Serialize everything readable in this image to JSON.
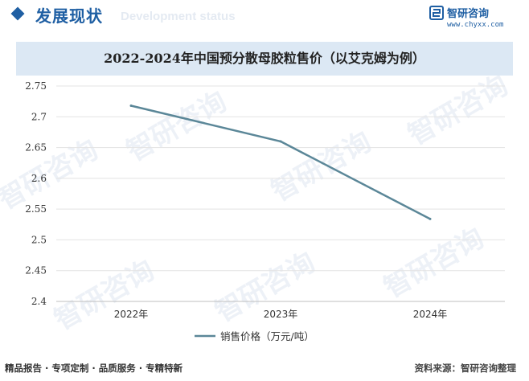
{
  "header": {
    "section_title": "发展现状",
    "section_subtitle": "Development status",
    "logo_name": "智研咨询",
    "logo_url": "www.chyxx.com"
  },
  "watermark_text": "智研咨询",
  "chart_data": {
    "type": "line",
    "title": "2022-2024年中国预分散母胶粒售价（以艾克姆为例）",
    "categories": [
      "2022年",
      "2023年",
      "2024年"
    ],
    "series": [
      {
        "name": "销售价格（万元/吨）",
        "values": [
          2.718,
          2.66,
          2.534
        ],
        "color": "#5b8798"
      }
    ],
    "ylim": [
      2.4,
      2.75
    ],
    "yticks": [
      "2.75",
      "2.7",
      "2.65",
      "2.6",
      "2.55",
      "2.5",
      "2.45",
      "2.4"
    ],
    "grid": true,
    "legend": "bottom"
  },
  "footer": {
    "left": "精品报告 · 专项定制 · 品质服务 · 专精特新",
    "right": "资料来源：智研咨询整理"
  }
}
